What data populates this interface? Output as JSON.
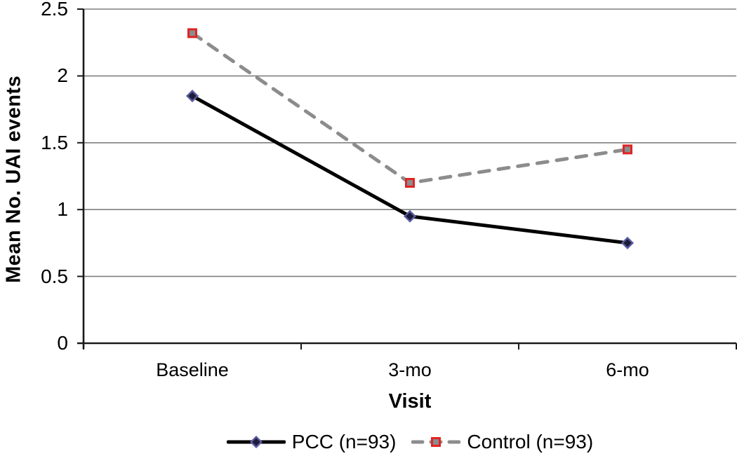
{
  "chart_data": {
    "type": "line",
    "title": "",
    "xlabel": "Visit",
    "ylabel": "Mean No. UAI events",
    "categories": [
      "Baseline",
      "3-mo",
      "6-mo"
    ],
    "series": [
      {
        "name": "PCC (n=93)",
        "values": [
          1.85,
          0.95,
          0.75
        ],
        "line_color": "#000000",
        "line_style": "solid",
        "marker": "diamond",
        "marker_fill": "#1c1c38",
        "marker_stroke": "#5c5ca3"
      },
      {
        "name": "Control (n=93)",
        "values": [
          2.32,
          1.2,
          1.45
        ],
        "line_color": "#8c8c8c",
        "line_style": "dashed",
        "marker": "square",
        "marker_fill": "#8c8c8c",
        "marker_stroke": "#e02424"
      }
    ],
    "ylim": [
      0,
      2.5
    ],
    "yticks": [
      0,
      0.5,
      1,
      1.5,
      2,
      2.5
    ],
    "ytick_labels": [
      "0",
      "0.5",
      "1",
      "1.5",
      "2",
      "2.5"
    ],
    "grid": "horizontal",
    "gridline_color": "#7f7f7f",
    "axis_color": "#1a1a1a",
    "legend_position": "bottom-center"
  }
}
